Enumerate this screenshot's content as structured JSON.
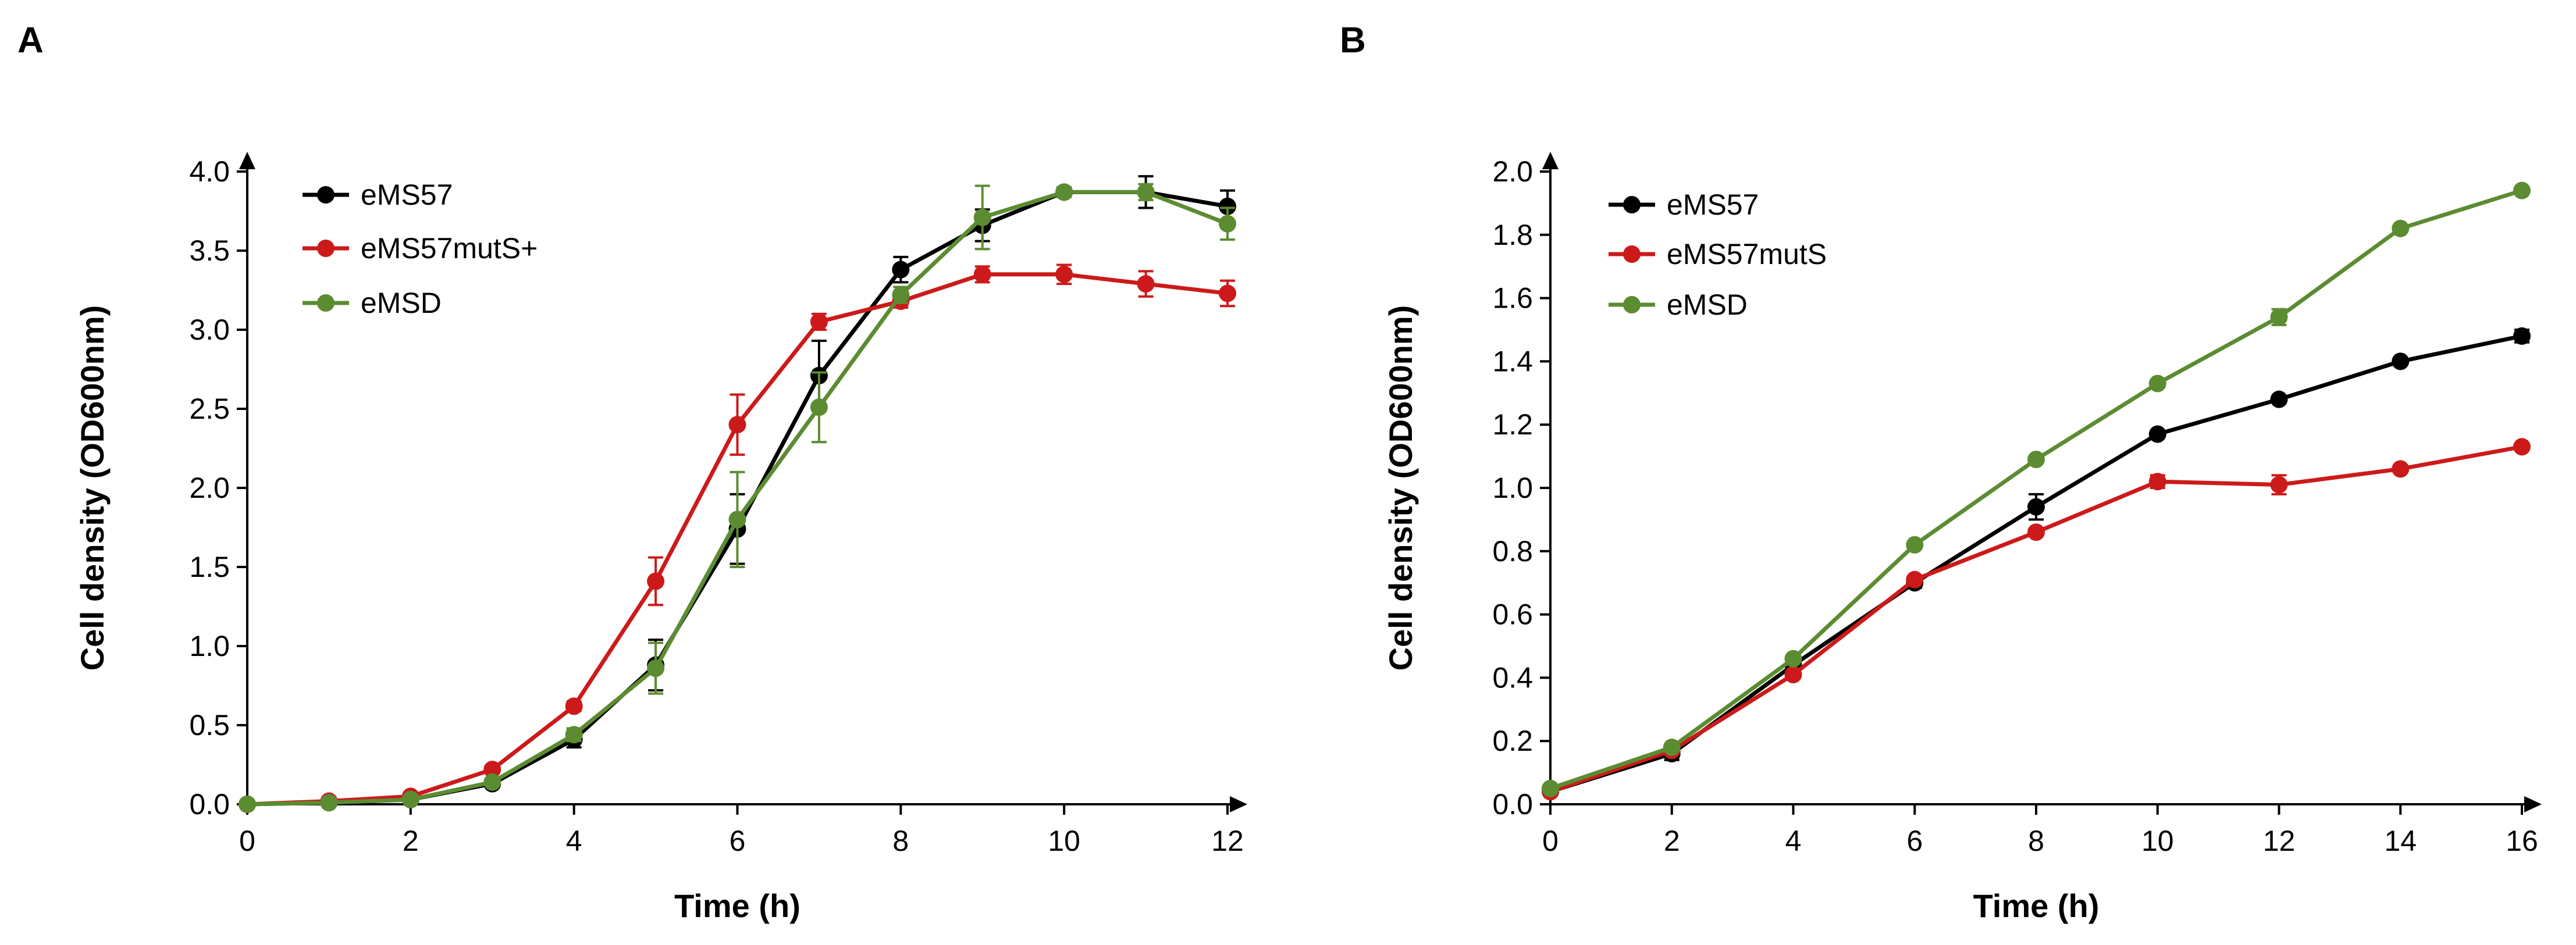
{
  "chart_data": [
    {
      "panel": "A",
      "type": "line",
      "xlabel": "Time (h)",
      "ylabel": "Cell density (OD600nm)",
      "xlim": [
        0,
        12
      ],
      "ylim": [
        0,
        4.0
      ],
      "xticks": [
        0,
        2,
        4,
        6,
        8,
        10,
        12
      ],
      "yticks": [
        "0.0",
        "0.5",
        "1.0",
        "1.5",
        "2.0",
        "2.5",
        "3.0",
        "3.5",
        "4.0"
      ],
      "legend_position": "top-left",
      "grid": false,
      "x": [
        0,
        1,
        2,
        3,
        4,
        5,
        6,
        7,
        8,
        9,
        10,
        11,
        12
      ],
      "series": [
        {
          "name": "eMS57",
          "color": "#000000",
          "values": [
            0.0,
            0.01,
            0.03,
            0.13,
            0.41,
            0.88,
            1.74,
            2.71,
            3.38,
            3.66,
            3.87,
            3.87,
            3.78
          ],
          "errors": [
            0.0,
            0.0,
            0.01,
            0.02,
            0.05,
            0.16,
            0.22,
            0.22,
            0.08,
            0.1,
            0.03,
            0.1,
            0.1
          ]
        },
        {
          "name": "eMS57mutS+",
          "color": "#cc1a1a",
          "values": [
            0.0,
            0.02,
            0.05,
            0.22,
            0.62,
            1.41,
            2.4,
            3.05,
            3.18,
            3.35,
            3.35,
            3.29,
            3.23
          ],
          "errors": [
            0.0,
            0.0,
            0.01,
            0.02,
            0.03,
            0.15,
            0.19,
            0.05,
            0.04,
            0.05,
            0.06,
            0.08,
            0.08
          ]
        },
        {
          "name": "eMSD",
          "color": "#5b8c32",
          "values": [
            0.0,
            0.01,
            0.03,
            0.14,
            0.44,
            0.86,
            1.8,
            2.51,
            3.22,
            3.71,
            3.87,
            3.87,
            3.67
          ],
          "errors": [
            0.0,
            0.0,
            0.01,
            0.02,
            0.04,
            0.16,
            0.3,
            0.22,
            0.05,
            0.2,
            0.03,
            0.05,
            0.1
          ]
        }
      ]
    },
    {
      "panel": "B",
      "type": "line",
      "xlabel": "Time (h)",
      "ylabel": "Cell density (OD600nm)",
      "xlim": [
        0,
        16
      ],
      "ylim": [
        0,
        2.0
      ],
      "xticks": [
        0,
        2,
        4,
        6,
        8,
        10,
        12,
        14,
        16
      ],
      "yticks": [
        "0.0",
        "0.2",
        "0.4",
        "0.6",
        "0.8",
        "1.0",
        "1.2",
        "1.4",
        "1.6",
        "1.8",
        "2.0"
      ],
      "legend_position": "top-left",
      "grid": false,
      "x": [
        0,
        2,
        4,
        6,
        8,
        10,
        12,
        14,
        16
      ],
      "series": [
        {
          "name": "eMS57",
          "color": "#000000",
          "values": [
            0.04,
            0.16,
            0.44,
            0.7,
            0.94,
            1.17,
            1.28,
            1.4,
            1.48
          ],
          "errors": [
            0.005,
            0.02,
            0.015,
            0.015,
            0.04,
            0.01,
            0.01,
            0.01,
            0.02
          ]
        },
        {
          "name": "eMS57mutS",
          "color": "#cc1a1a",
          "values": [
            0.04,
            0.17,
            0.41,
            0.71,
            0.86,
            1.02,
            1.01,
            1.06,
            1.13
          ],
          "errors": [
            0.005,
            0.01,
            0.01,
            0.01,
            0.01,
            0.02,
            0.03,
            0.01,
            0.01
          ]
        },
        {
          "name": "eMSD",
          "color": "#5b8c32",
          "values": [
            0.05,
            0.18,
            0.46,
            0.82,
            1.09,
            1.33,
            1.54,
            1.82,
            1.94
          ],
          "errors": [
            0.005,
            0.01,
            0.01,
            0.01,
            0.01,
            0.01,
            0.025,
            0.01,
            0.01
          ]
        }
      ]
    }
  ]
}
